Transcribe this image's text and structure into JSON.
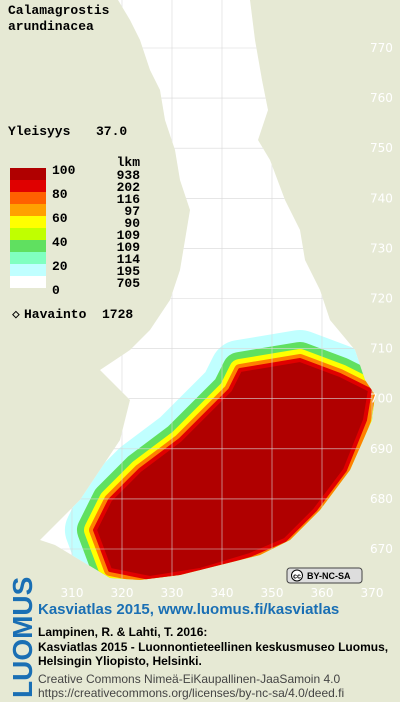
{
  "header": {
    "title_lines": [
      "Calamagrostis",
      "arundinacea"
    ],
    "frequency_label": "Yleisyys",
    "frequency_value": "37.0"
  },
  "legend": {
    "scale_labels": [
      100,
      80,
      60,
      40,
      20,
      0
    ],
    "count_header": "lkm",
    "counts": [
      938,
      202,
      116,
      97,
      90,
      109,
      109,
      114,
      195,
      705
    ],
    "observation_label": "Havainto",
    "observation_count": 1728
  },
  "map": {
    "northing_labels": [
      770,
      760,
      750,
      740,
      730,
      720,
      710,
      700,
      690,
      680,
      670
    ],
    "easting_labels": [
      310,
      320,
      330,
      340,
      350,
      360,
      370
    ],
    "license_badge": "BY-NC-SA"
  },
  "footer": {
    "logo": "LUOMUS",
    "link_line": "Kasviatlas 2015, www.luomus.fi/kasviatlas",
    "citation": [
      "Lampinen, R. & Lahti, T. 2016:",
      "Kasviatlas 2015 - Luonnontieteellinen keskusmuseo Luomus,",
      "Helsingin Yliopisto, Helsinki."
    ],
    "license": [
      "Creative Commons Nimeä-EiKaupallinen-JaaSamoin 4.0",
      "https://creativecommons.org/licenses/by-nc-sa/4.0/deed.fi"
    ]
  }
}
